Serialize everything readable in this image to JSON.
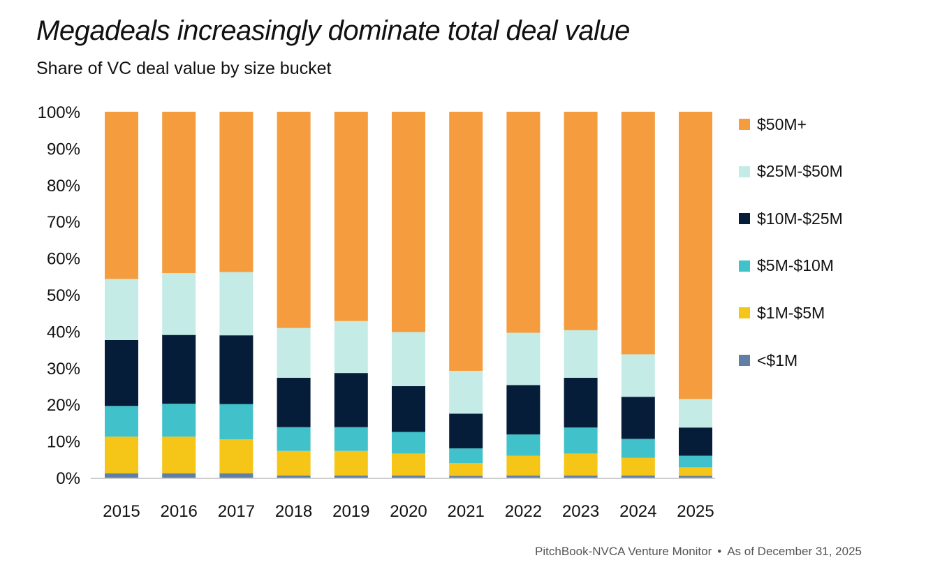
{
  "header": {
    "title": "Megadeals increasingly dominate total deal value",
    "subtitle": "Share of VC deal value by size bucket"
  },
  "footer": {
    "source": "PitchBook-NVCA Venture Monitor",
    "separator": "•",
    "date": "As of December 31, 2025"
  },
  "chart_data": {
    "type": "bar",
    "stacked": true,
    "title": "Megadeals increasingly dominate total deal value",
    "subtitle": "Share of VC deal value by size bucket",
    "xlabel": "",
    "ylabel": "",
    "ylim": [
      0,
      100
    ],
    "yticks": [
      "0%",
      "10%",
      "20%",
      "30%",
      "40%",
      "50%",
      "60%",
      "70%",
      "80%",
      "90%",
      "100%"
    ],
    "grid": false,
    "legend_position": "right",
    "categories": [
      "2015",
      "2016",
      "2017",
      "2018",
      "2019",
      "2020",
      "2021",
      "2022",
      "2023",
      "2024",
      "2025"
    ],
    "series": [
      {
        "name": "<$1M",
        "color": "#5f7fa6",
        "values": [
          1.2,
          1.2,
          1.2,
          0.6,
          0.6,
          0.6,
          0.5,
          0.6,
          0.6,
          0.6,
          0.5
        ]
      },
      {
        "name": "$1M-$5M",
        "color": "#f5c518",
        "values": [
          10.0,
          10.0,
          9.3,
          6.7,
          6.7,
          6.0,
          3.5,
          5.4,
          6.0,
          4.8,
          2.3
        ]
      },
      {
        "name": "$5M-$10M",
        "color": "#41c1c9",
        "values": [
          8.4,
          9.0,
          9.6,
          6.5,
          6.5,
          5.9,
          4.0,
          5.8,
          7.1,
          5.2,
          3.2
        ]
      },
      {
        "name": "$10M-$25M",
        "color": "#061d3a",
        "values": [
          18.0,
          18.8,
          18.8,
          13.5,
          14.8,
          12.5,
          9.5,
          13.5,
          13.6,
          11.5,
          7.7
        ]
      },
      {
        "name": "$25M-$50M",
        "color": "#c5ebe7",
        "values": [
          16.7,
          16.9,
          17.3,
          13.6,
          14.2,
          14.8,
          11.7,
          14.3,
          13.0,
          11.6,
          7.8
        ]
      },
      {
        "name": "$50M+",
        "color": "#f59c3e",
        "values": [
          45.7,
          44.1,
          43.8,
          59.1,
          57.2,
          60.2,
          70.8,
          60.4,
          59.7,
          66.3,
          78.5
        ]
      }
    ]
  }
}
